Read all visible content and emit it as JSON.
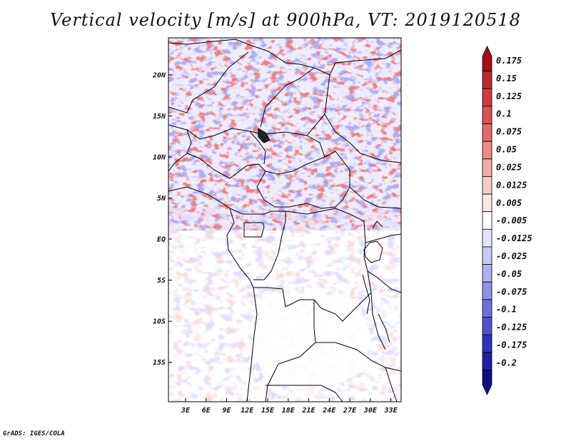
{
  "title": "Vertical velocity [m/s] at 900hPa, VT: 2019120518",
  "credit": "GrADS: IGES/COLA",
  "map": {
    "lat_labels": [
      "20N",
      "15N",
      "10N",
      "5N",
      "EQ",
      "5S",
      "10S",
      "15S"
    ],
    "lat_values": [
      20,
      15,
      10,
      5,
      0,
      -5,
      -10,
      -15
    ],
    "lon_labels": [
      "3E",
      "6E",
      "9E",
      "12E",
      "15E",
      "18E",
      "21E",
      "24E",
      "27E",
      "30E",
      "33E"
    ],
    "lon_values": [
      3,
      6,
      9,
      12,
      15,
      18,
      21,
      24,
      27,
      30,
      33
    ],
    "lon_range": [
      0.5,
      34.5
    ],
    "lat_range": [
      -19.8,
      24.5
    ]
  },
  "colorbar": {
    "labels": [
      "0.175",
      "0.15",
      "0.125",
      "0.1",
      "0.075",
      "0.05",
      "0.025",
      "0.0125",
      "0.005",
      "-0.005",
      "-0.0125",
      "-0.025",
      "-0.05",
      "-0.075",
      "-0.1",
      "-0.125",
      "-0.175",
      "-0.2"
    ],
    "colors": [
      "#a50f15",
      "#bd2a2a",
      "#d03b3b",
      "#de5050",
      "#e56a6a",
      "#ec8a8a",
      "#f2aaaa",
      "#f7caca",
      "#fbe6e6",
      "#ffffff",
      "#e4e4fb",
      "#cacaf6",
      "#b0b0f0",
      "#9090e8",
      "#7070dc",
      "#5050d0",
      "#3232c0",
      "#1e1eaa",
      "#0d0d8a"
    ]
  }
}
